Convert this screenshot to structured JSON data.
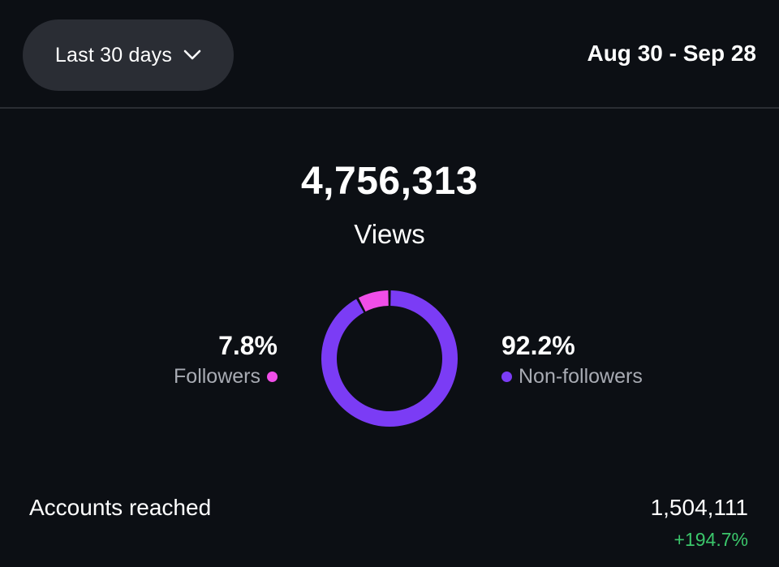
{
  "header": {
    "range_selector": {
      "label": "Last 30 days",
      "icon": "chevron-down-icon"
    },
    "date_range": "Aug 30 - Sep 28"
  },
  "views": {
    "value": "4,756,313",
    "label": "Views"
  },
  "breakdown": {
    "followers": {
      "percent_label": "7.8%",
      "label": "Followers",
      "color": "#f04ee8",
      "value": 7.8
    },
    "non_followers": {
      "percent_label": "92.2%",
      "label": "Non-followers",
      "color": "#7b3cf5",
      "value": 92.2
    }
  },
  "chart_data": {
    "type": "pie",
    "categories": [
      "Followers",
      "Non-followers"
    ],
    "values": [
      7.8,
      92.2
    ],
    "colors": [
      "#f04ee8",
      "#7b3cf5"
    ]
  },
  "accounts_reached": {
    "label": "Accounts reached",
    "value": "1,504,111",
    "change": "+194.7%",
    "change_color": "#3bc66b"
  }
}
